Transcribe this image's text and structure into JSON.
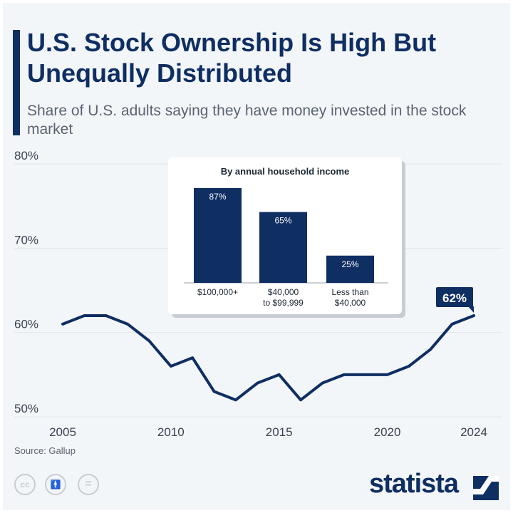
{
  "header": {
    "title": "U.S. Stock Ownership Is High But Unequally Distributed",
    "subtitle": "Share of U.S. adults saying they have money invested in the stock market"
  },
  "footer": {
    "source": "Source: Gallup",
    "logo": "statista",
    "license_icons": [
      "cc-icon",
      "by-icon",
      "nd-icon"
    ]
  },
  "colors": {
    "primary": "#0f2e62",
    "background": "#f3f6f9"
  },
  "chart_data": [
    {
      "type": "line",
      "title": "",
      "xlabel": "",
      "ylabel": "",
      "x": [
        2005,
        2006,
        2007,
        2008,
        2009,
        2010,
        2011,
        2012,
        2013,
        2014,
        2015,
        2016,
        2017,
        2018,
        2019,
        2020,
        2021,
        2022,
        2023,
        2024
      ],
      "series": [
        {
          "values": [
            61,
            62,
            62,
            61,
            59,
            56,
            57,
            53,
            52,
            54,
            55,
            52,
            54,
            55,
            55,
            55,
            56,
            58,
            61,
            62
          ]
        }
      ],
      "ylim": [
        50,
        80
      ],
      "yticks": [
        "50%",
        "60%",
        "70%",
        "80%"
      ],
      "xticks": [
        "2005",
        "2010",
        "2015",
        "2020",
        "2024"
      ],
      "grid": true,
      "annotation": {
        "x": 2024,
        "label": "62%"
      }
    },
    {
      "type": "bar",
      "title": "By annual household income",
      "categories": [
        "$100,000+",
        "$40,000 to $99,999",
        "Less than $40,000"
      ],
      "category_lines": [
        [
          "$100,000+"
        ],
        [
          "$40,000",
          "to $99,999"
        ],
        [
          "Less than",
          "$40,000"
        ]
      ],
      "values": [
        87,
        65,
        25
      ],
      "labels": [
        "87%",
        "65%",
        "25%"
      ]
    }
  ]
}
